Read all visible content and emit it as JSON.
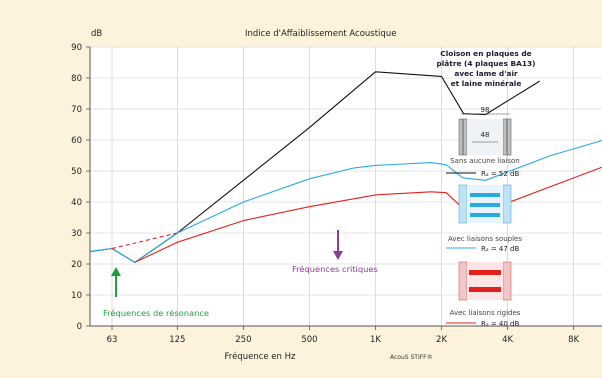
{
  "chart_data": {
    "type": "line",
    "title": "Indice d'Affaiblissement Acoustique",
    "ylabel": "dB",
    "xlabel": "Fréquence en Hz",
    "ylim": [
      0,
      90
    ],
    "yticks": [
      0,
      10,
      20,
      30,
      40,
      50,
      60,
      70,
      80,
      90
    ],
    "x_scale": "log",
    "xlim": [
      50,
      11000
    ],
    "xticks": [
      {
        "value": 63,
        "label": "63"
      },
      {
        "value": 125,
        "label": "125"
      },
      {
        "value": 250,
        "label": "250"
      },
      {
        "value": 500,
        "label": "500"
      },
      {
        "value": 1000,
        "label": "1K"
      },
      {
        "value": 2000,
        "label": "2K"
      },
      {
        "value": 4000,
        "label": "4K"
      },
      {
        "value": 8000,
        "label": "8K"
      }
    ],
    "grid": true,
    "series": [
      {
        "name": "Sans aucune liaison",
        "color": "#111111",
        "points": [
          [
            50,
            24
          ],
          [
            63,
            25
          ],
          [
            80,
            20.5
          ],
          [
            125,
            30
          ],
          [
            250,
            47
          ],
          [
            500,
            64
          ],
          [
            1000,
            82
          ],
          [
            2000,
            80.5
          ],
          [
            2520,
            68.5
          ],
          [
            3170,
            68.2
          ],
          [
            5600,
            79
          ]
        ]
      },
      {
        "name": "Avec liaisons souples",
        "color": "#29abe2",
        "points": [
          [
            50,
            24
          ],
          [
            63,
            25
          ],
          [
            80,
            20.5
          ],
          [
            125,
            30
          ],
          [
            250,
            40
          ],
          [
            500,
            47.5
          ],
          [
            800,
            51
          ],
          [
            1000,
            51.8
          ],
          [
            1800,
            52.7
          ],
          [
            2100,
            52
          ],
          [
            2500,
            47.8
          ],
          [
            3170,
            47
          ],
          [
            6300,
            55
          ],
          [
            11000,
            60
          ]
        ]
      },
      {
        "name": "Avec liaisons rigides",
        "color": "#e2211c",
        "points": [
          [
            80,
            20.5
          ],
          [
            125,
            27
          ],
          [
            250,
            34
          ],
          [
            500,
            38.5
          ],
          [
            1000,
            42.3
          ],
          [
            1800,
            43.3
          ],
          [
            2100,
            43
          ],
          [
            2500,
            38
          ],
          [
            3170,
            37
          ],
          [
            6300,
            45
          ],
          [
            11000,
            51.5
          ]
        ]
      },
      {
        "name": "",
        "color": "#e2211c",
        "dashed": true,
        "points": [
          [
            63,
            25
          ],
          [
            125,
            30
          ]
        ]
      }
    ],
    "annotations": {
      "resonance": "Fréquences de résonance",
      "critical": "Fréquences critiques"
    },
    "credit": "AcouS STIFF®"
  },
  "legend": {
    "title_lines": [
      "Cloison en plaques de",
      "plâtre (4 plaques BA13)",
      "avec lame d'air",
      "et laine minérale"
    ],
    "dim_outer": "98",
    "dim_inner": "48",
    "entries": [
      {
        "label": "Sans aucune liaison",
        "rating": "Rₐ = 52 dB",
        "color": "#111111"
      },
      {
        "label": "Avec liaisons souples",
        "rating": "Rₐ = 47 dB",
        "color": "#29abe2"
      },
      {
        "label": "Avec liaisons rigides",
        "rating": "Rₐ = 40 dB",
        "color": "#e2211c"
      }
    ]
  },
  "colors": {
    "background": "#fdf3dc",
    "plot_bg": "#ffffff",
    "grid": "#c9c9c9",
    "green_annotation": "#1f9e3a",
    "purple_annotation": "#8a3c96"
  }
}
